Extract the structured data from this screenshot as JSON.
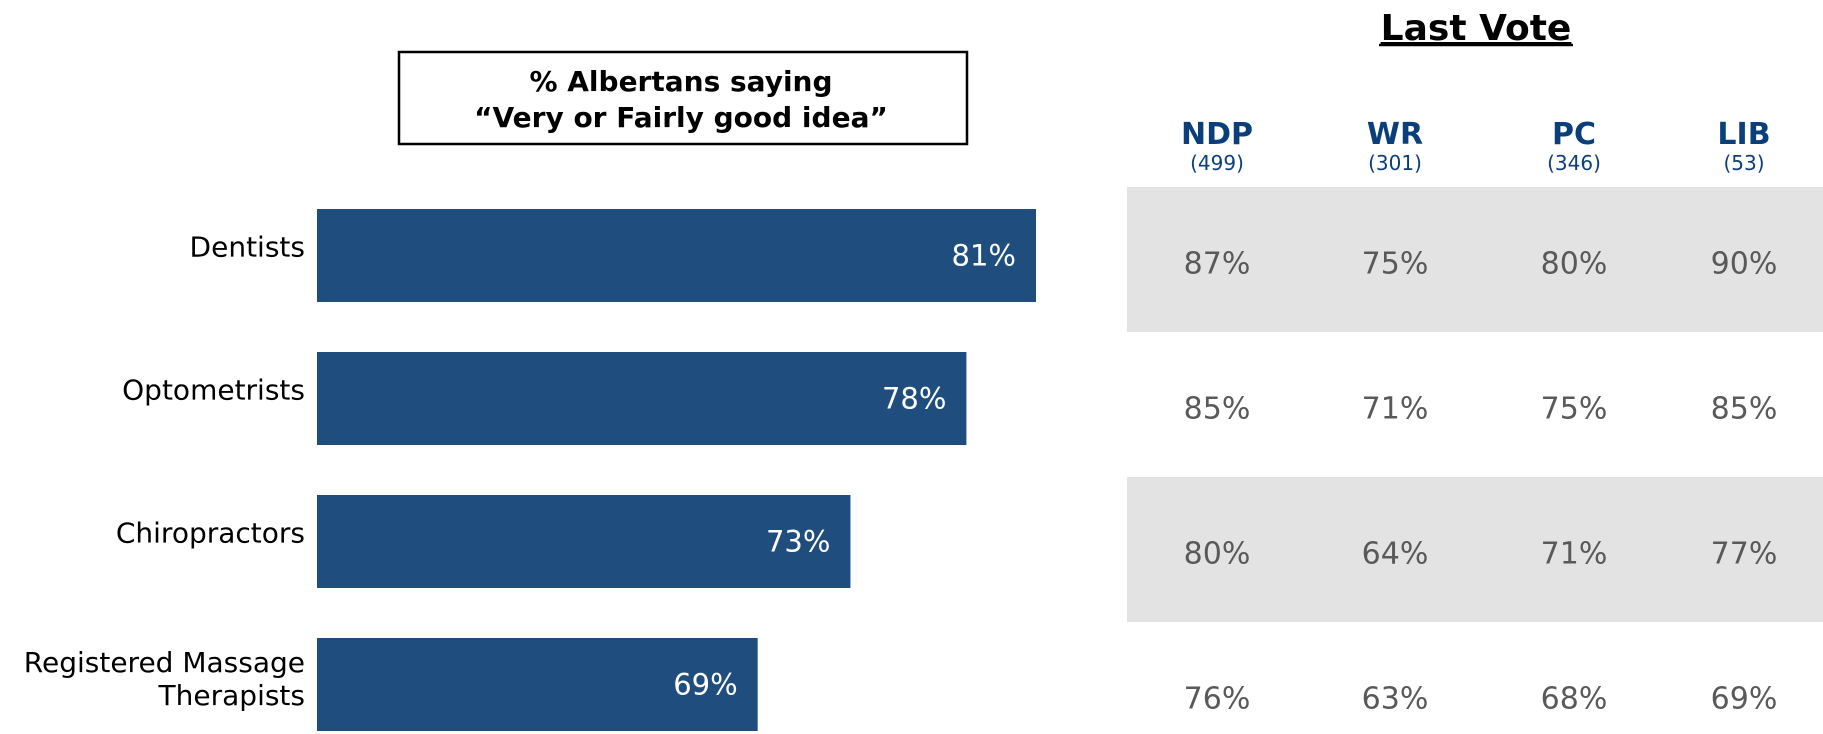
{
  "chart_data": {
    "type": "bar",
    "orientation": "horizontal",
    "title_box": {
      "line1": "% Albertans saying",
      "line2": "“Very or Fairly good idea”"
    },
    "categories": [
      [
        "Dentists"
      ],
      [
        "Optometrists"
      ],
      [
        "Chiropractors"
      ],
      [
        "Registered Massage",
        "Therapists"
      ]
    ],
    "values": [
      81,
      78,
      73,
      69
    ],
    "value_labels": [
      "81%",
      "78%",
      "73%",
      "69%"
    ],
    "bar_color": "#1F4E7E",
    "xlim": [
      50,
      85
    ],
    "table": {
      "title": "Last Vote",
      "header_color": "#0B3F7C",
      "stripe_color": "#E3E3E3",
      "columns": [
        {
          "name": "NDP",
          "n": "(499)"
        },
        {
          "name": "WR",
          "n": "(301)"
        },
        {
          "name": "PC",
          "n": "(346)"
        },
        {
          "name": "LIB",
          "n": "(53)"
        }
      ],
      "rows": [
        [
          "87%",
          "75%",
          "80%",
          "90%"
        ],
        [
          "85%",
          "71%",
          "75%",
          "85%"
        ],
        [
          "80%",
          "64%",
          "71%",
          "77%"
        ],
        [
          "76%",
          "63%",
          "68%",
          "69%"
        ]
      ]
    }
  }
}
